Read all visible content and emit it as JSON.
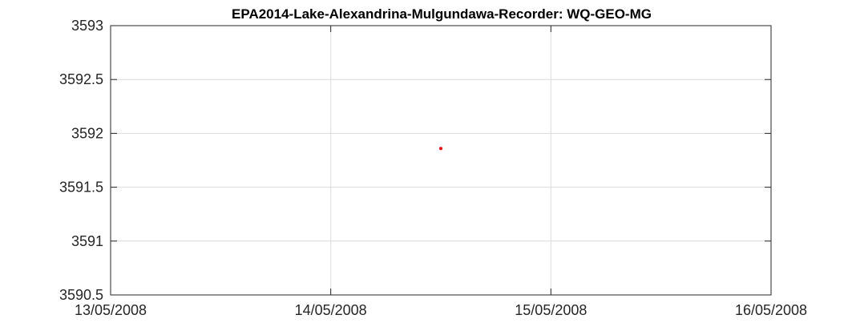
{
  "chart_data": {
    "type": "scatter",
    "title": "EPA2014-Lake-Alexandrina-Mulgundawa-Recorder: WQ-GEO-MG",
    "xlabel": "",
    "ylabel": "",
    "x_ticks": [
      "13/05/2008",
      "14/05/2008",
      "15/05/2008",
      "16/05/2008"
    ],
    "xlim": [
      "13/05/2008 00:00",
      "16/05/2008 00:00"
    ],
    "ylim": [
      3590.5,
      3593
    ],
    "y_ticks": [
      3590.5,
      3591,
      3591.5,
      3592,
      3592.5,
      3593
    ],
    "y_tick_labels": [
      "3590.5",
      "3591",
      "3591.5",
      "3592",
      "3592.5",
      "3593"
    ],
    "grid": true,
    "series": [
      {
        "color": "#ff0000",
        "points": [
          {
            "x": "14/05/2008 12:00",
            "y": 3591.86
          }
        ]
      }
    ]
  }
}
